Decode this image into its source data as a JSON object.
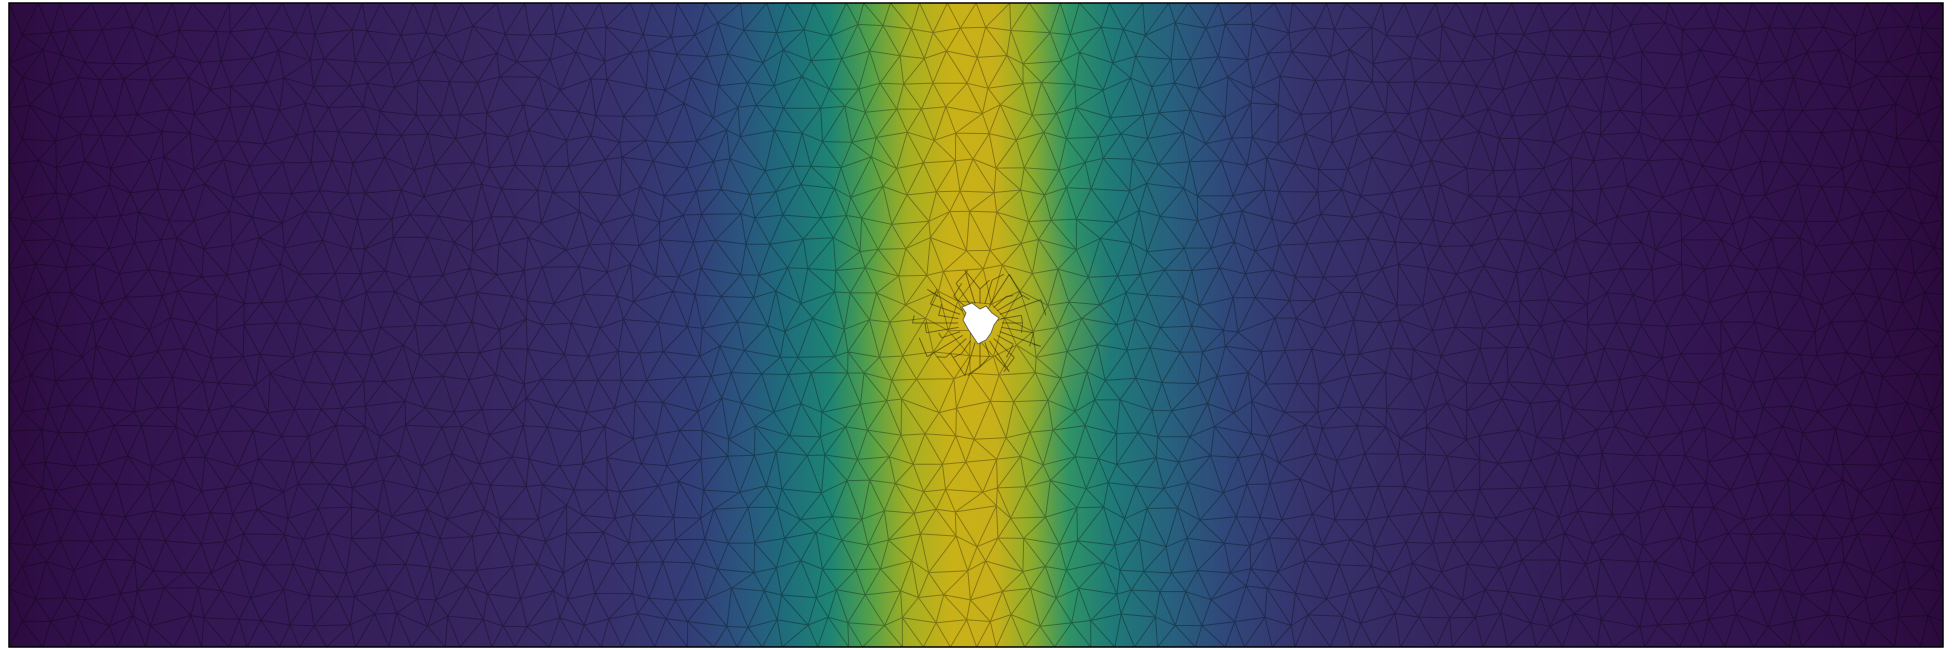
{
  "figure": {
    "kind": "finite-element mesh field plot",
    "colormap": "viridis",
    "colors": {
      "low": "#2f0f45",
      "mid_low": "#3a336f",
      "mid": "#1f7a78",
      "high": "#c9b018",
      "hole": "#ffffff",
      "mesh_line": "#000000",
      "frame": "#000000"
    },
    "features": [
      "triangular-mesh",
      "scalar-field",
      "central-hole"
    ]
  }
}
